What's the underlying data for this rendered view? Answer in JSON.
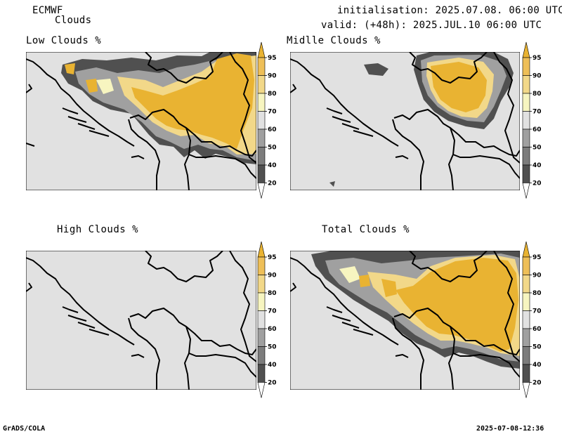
{
  "header": {
    "model": "ECMWF",
    "field": "Clouds",
    "initialisation": "initialisation: 2025.07.08. 06:00 UTC",
    "valid": "valid: (+48h): 2025.JUL.10 06:00 UTC"
  },
  "panels": [
    {
      "title": "Low Clouds %"
    },
    {
      "title": "Midlle Clouds %"
    },
    {
      "title": "High Clouds %"
    },
    {
      "title": "Total Clouds %"
    }
  ],
  "colorbar": {
    "levels": [
      "20",
      "40",
      "50",
      "60",
      "70",
      "80",
      "90",
      "95"
    ],
    "colors": {
      "below20": "#ffffff",
      "b20_40": "#505050",
      "b40_50": "#7c7c7c",
      "b50_60": "#a0a0a0",
      "b60_70": "#e1e1e1",
      "b70_80": "#f7f5c0",
      "b80_90": "#f2d889",
      "b90_95": "#eebf58",
      "above95": "#e9b332"
    }
  },
  "footer": {
    "left": "GrADS/COLA",
    "right": "2025-07-08-12:36"
  }
}
